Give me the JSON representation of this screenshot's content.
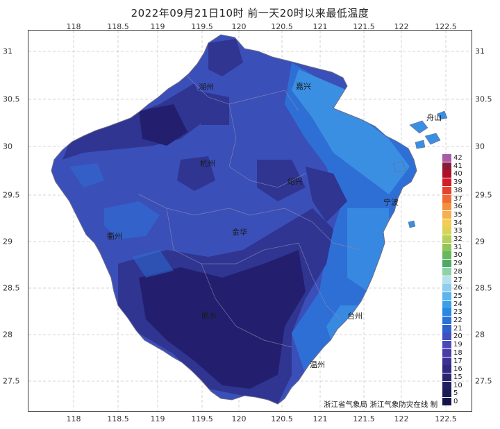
{
  "title": "2022年09月21日10时 前一天20时以来最低温度",
  "lon_ticks": [
    "118",
    "118.5",
    "119",
    "119.5",
    "120",
    "120.5",
    "121",
    "121.5",
    "122",
    "122.5"
  ],
  "lat_ticks": [
    "31",
    "30.5",
    "30",
    "29.5",
    "29",
    "28.5",
    "28",
    "27.5"
  ],
  "cities": [
    {
      "id": "huzhou",
      "label": "湖州"
    },
    {
      "id": "jiaxing",
      "label": "嘉兴"
    },
    {
      "id": "zhoushan",
      "label": "舟山"
    },
    {
      "id": "hangzhou",
      "label": "杭州"
    },
    {
      "id": "shaoxing",
      "label": "绍兴"
    },
    {
      "id": "ningbo",
      "label": "宁波"
    },
    {
      "id": "quzhou",
      "label": "衢州"
    },
    {
      "id": "jinhua",
      "label": "金华"
    },
    {
      "id": "lishui",
      "label": "丽水"
    },
    {
      "id": "taizhou",
      "label": "台州"
    },
    {
      "id": "wenzhou",
      "label": "温州"
    }
  ],
  "legend": {
    "labels": [
      "42",
      "41",
      "40",
      "39",
      "38",
      "37",
      "36",
      "35",
      "34",
      "33",
      "32",
      "31",
      "30",
      "29",
      "28",
      "27",
      "26",
      "25",
      "24",
      "23",
      "22",
      "21",
      "20",
      "19",
      "18",
      "17",
      "16",
      "15",
      "10",
      "5",
      "0"
    ],
    "colors": [
      "#a85ca8",
      "#8b1a3a",
      "#b0102a",
      "#d21c2a",
      "#e8402c",
      "#f06a34",
      "#f4903c",
      "#f6b04a",
      "#f2cc55",
      "#d8d456",
      "#b6d058",
      "#8ec65a",
      "#66b85a",
      "#4caa64",
      "#8ed2a6",
      "#b6e0ee",
      "#8ecdee",
      "#5cb4ec",
      "#3aa0e8",
      "#2a88e0",
      "#2a72d8",
      "#3060cc",
      "#4050c0",
      "#4a48b8",
      "#4a3ca8",
      "#3c3090",
      "#30287e",
      "#2a2470",
      "#221e62",
      "#1a1a54",
      "#141448"
    ]
  },
  "credit": "浙江省气象局 浙江气象防灾在线 制",
  "colors": {
    "very_cold": "#231f6e",
    "cold": "#2f3591",
    "cool": "#3b4fb9",
    "mild": "#2e6fd6",
    "warm": "#3a8fe2"
  }
}
